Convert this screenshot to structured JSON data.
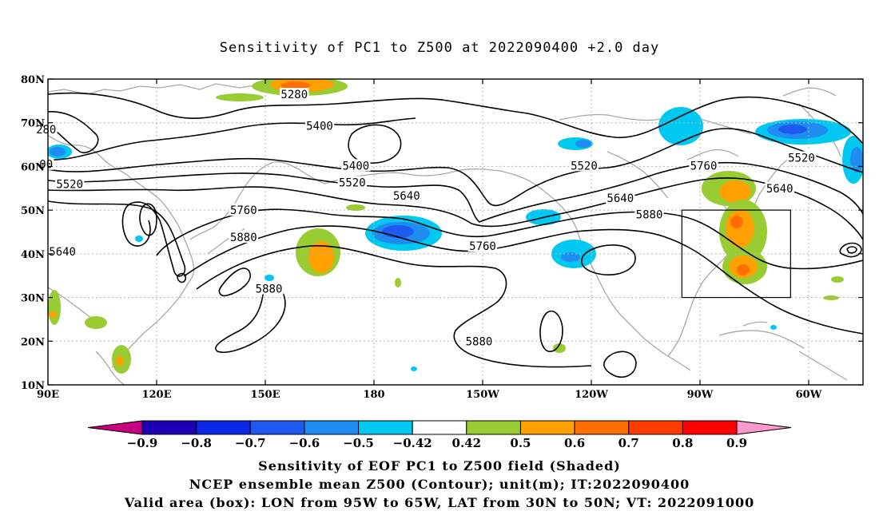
{
  "title": "Sensitivity of PC1 to Z500 at 2022090400 +2.0 day",
  "map": {
    "lon_ticks": [
      {
        "lon": 90,
        "label": "90E"
      },
      {
        "lon": 120,
        "label": "120E"
      },
      {
        "lon": 150,
        "label": "150E"
      },
      {
        "lon": 180,
        "label": "180"
      },
      {
        "lon": 210,
        "label": "150W"
      },
      {
        "lon": 240,
        "label": "120W"
      },
      {
        "lon": 270,
        "label": "90W"
      },
      {
        "lon": 300,
        "label": "60W"
      }
    ],
    "lat_ticks": [
      {
        "lat": 80,
        "label": "80N"
      },
      {
        "lat": 70,
        "label": "70N"
      },
      {
        "lat": 60,
        "label": "60N"
      },
      {
        "lat": 50,
        "label": "50N"
      },
      {
        "lat": 40,
        "label": "40N"
      },
      {
        "lat": 30,
        "label": "30N"
      },
      {
        "lat": 20,
        "label": "20N"
      },
      {
        "lat": 10,
        "label": "10N"
      }
    ],
    "lon_range": [
      90,
      315
    ],
    "lat_range": [
      10,
      80
    ],
    "grid": true,
    "valid_box": {
      "lon_min": 265,
      "lon_max": 295,
      "lat_min": 30,
      "lat_max": 50
    },
    "contour_labels": [
      {
        "text": "5280",
        "lon": 158,
        "lat": 76.5
      },
      {
        "text": "5400",
        "lon": 165,
        "lat": 69.3
      },
      {
        "text": "5400",
        "lon": 175,
        "lat": 60.2
      },
      {
        "text": "5520",
        "lon": 174,
        "lat": 56.3
      },
      {
        "text": "5640",
        "lon": 189,
        "lat": 53.3
      },
      {
        "text": "5640",
        "lon": 248,
        "lat": 52.8
      },
      {
        "text": "5760",
        "lon": 144,
        "lat": 50.0
      },
      {
        "text": "5760",
        "lon": 210,
        "lat": 41.8
      },
      {
        "text": "5760",
        "lon": 271,
        "lat": 60.2
      },
      {
        "text": "5880",
        "lon": 144,
        "lat": 43.8
      },
      {
        "text": "5880",
        "lon": 256,
        "lat": 49.0
      },
      {
        "text": "5880",
        "lon": 151,
        "lat": 32.0
      },
      {
        "text": "5880",
        "lon": 209,
        "lat": 20.0
      },
      {
        "text": "5520",
        "lon": 96,
        "lat": 56.0
      },
      {
        "text": "5520",
        "lon": 238,
        "lat": 60.2
      },
      {
        "text": "5520",
        "lon": 298,
        "lat": 62.0
      },
      {
        "text": "5640",
        "lon": 94,
        "lat": 40.5
      },
      {
        "text": "5640",
        "lon": 292,
        "lat": 55.0
      },
      {
        "text": "280",
        "lon": 89.5,
        "lat": 68.5
      },
      {
        "text": "00",
        "lon": 89.5,
        "lat": 60.5
      }
    ]
  },
  "colorbar": {
    "colors": [
      "#c8007f",
      "#1e00b4",
      "#0a28e6",
      "#1e5af0",
      "#1e8cf0",
      "#00c8f0",
      "#ffffff",
      "#99cc33",
      "#ffa000",
      "#ff6e00",
      "#ff3c00",
      "#ff0000",
      "#ff99cc"
    ],
    "labels": [
      "−0.9",
      "−0.8",
      "−0.7",
      "−0.6",
      "−0.5",
      "−0.42",
      "0.42",
      "0.5",
      "0.6",
      "0.7",
      "0.8",
      "0.9"
    ]
  },
  "footer": {
    "line1": "Sensitivity of EOF PC1 to Z500 field (Shaded)",
    "line2": "NCEP ensemble mean Z500 (Contour); unit(m); IT:2022090400",
    "line3": "Valid area (box): LON from 95W to 65W, LAT from 30N to 50N; VT: 2022091000"
  }
}
